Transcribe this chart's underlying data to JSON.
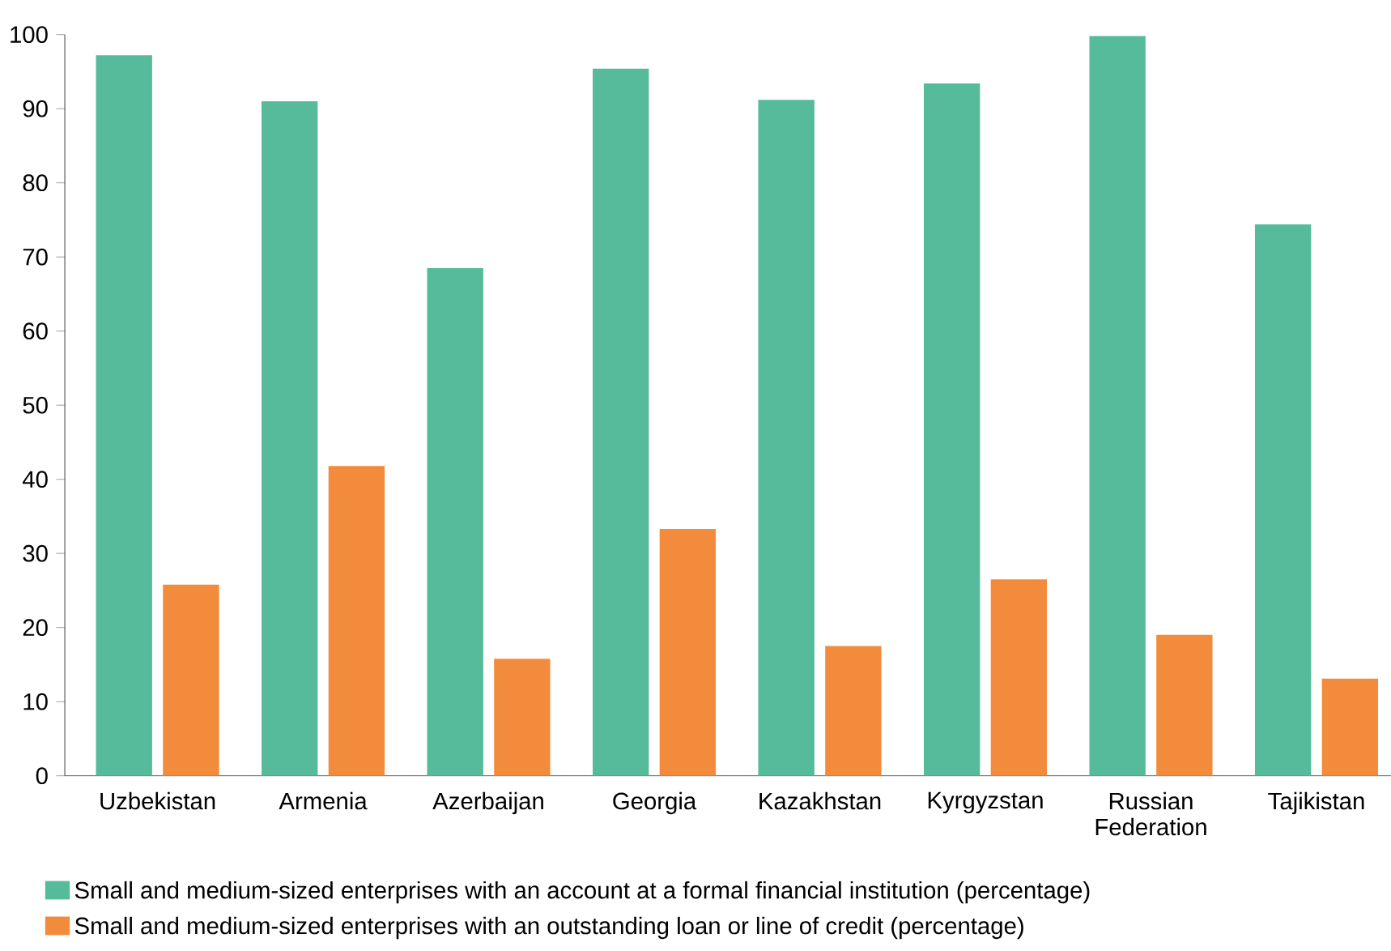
{
  "chart_data": {
    "type": "bar",
    "categories": [
      "Uzbekistan",
      "Armenia",
      "Azerbaijan",
      "Georgia",
      "Kazakhstan",
      "Kyrgyzstan",
      "Russian Federation",
      "Tajikistan"
    ],
    "series": [
      {
        "name": "Small and medium-sized enterprises with an account at a formal financial institution (percentage)",
        "color": "#55bb9b",
        "values": [
          97.2,
          91.0,
          68.5,
          95.4,
          91.2,
          93.4,
          99.8,
          74.4
        ]
      },
      {
        "name": "Small and medium-sized enterprises with an outstanding loan or line of credit (percentage)",
        "color": "#f28c3c",
        "values": [
          25.8,
          41.8,
          15.8,
          33.3,
          17.5,
          26.5,
          19.0,
          13.1
        ]
      }
    ],
    "ylim": [
      0,
      100
    ],
    "yticks": [
      0,
      10,
      20,
      30,
      40,
      50,
      60,
      70,
      80,
      90,
      100
    ],
    "grid": false,
    "legend": "bottom"
  }
}
